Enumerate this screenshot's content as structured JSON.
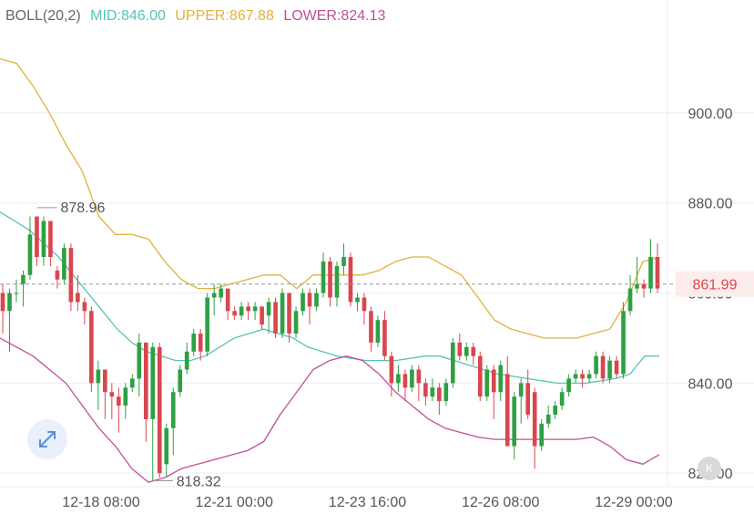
{
  "indicator": {
    "name": "BOLL(20,2)",
    "mid_label": "MID:846.00",
    "upper_label": "UPPER:867.88",
    "lower_label": "LOWER:824.13"
  },
  "colors": {
    "up": "#2ea043",
    "down": "#d9464f",
    "mid": "#56c4b4",
    "upper": "#e0b23c",
    "lower": "#c04f97",
    "name": "#666666",
    "grid": "#eeeeee",
    "current_price": "#d9464f"
  },
  "current_price_label": "861.99",
  "max_label": "878.96",
  "min_label": "818.32",
  "buttons": {
    "expand_icon": "expand-arrows-icon",
    "k_label": "K"
  },
  "chart_data": {
    "type": "candlestick",
    "title": "",
    "x_ticks": [
      "12-18 08:00",
      "12-21 00:00",
      "12-23 16:00",
      "12-26 08:00",
      "12-29 00:00"
    ],
    "y_ticks": [
      820,
      840,
      860,
      880,
      900
    ],
    "y_tick_labels": [
      "820.00",
      "840.00",
      "860.00",
      "880.00",
      "900.00"
    ],
    "ylim": [
      817,
      919
    ],
    "current_price": 861.99,
    "high_annotation": 878.96,
    "low_annotation": 818.32,
    "candles": [
      [
        860.0,
        856.0,
        862.0,
        851.0
      ],
      [
        856.0,
        860.0,
        861.0,
        847.0
      ],
      [
        860.0,
        860.0,
        863.0,
        858.0
      ],
      [
        862.0,
        864.0,
        865.0,
        857.0
      ],
      [
        864.0,
        873.0,
        877.0,
        863.0
      ],
      [
        877.0,
        868.0,
        877.0,
        866.0
      ],
      [
        868.0,
        876.0,
        877.0,
        866.0
      ],
      [
        876.0,
        868.0,
        876.0,
        866.0
      ],
      [
        865.0,
        863.0,
        866.0,
        861.0
      ],
      [
        863.0,
        870.0,
        871.0,
        862.0
      ],
      [
        870.0,
        858.0,
        871.0,
        856.0
      ],
      [
        860.0,
        858.0,
        864.0,
        856.0
      ],
      [
        858.0,
        856.0,
        859.0,
        853.0
      ],
      [
        856.0,
        840.0,
        857.0,
        838.0
      ],
      [
        840.0,
        843.0,
        845.0,
        834.0
      ],
      [
        843.0,
        838.0,
        843.0,
        832.0
      ],
      [
        838.0,
        837.0,
        840.0,
        832.0
      ],
      [
        837.0,
        835.0,
        839.0,
        829.0
      ],
      [
        835.0,
        839.0,
        840.0,
        832.0
      ],
      [
        839.0,
        841.0,
        842.0,
        838.0
      ],
      [
        841.0,
        849.0,
        851.0,
        837.0
      ],
      [
        849.0,
        832.0,
        849.0,
        827.0
      ],
      [
        832.0,
        848.0,
        849.0,
        818.32
      ],
      [
        848.0,
        820.0,
        849.0,
        819.0
      ],
      [
        822.0,
        830.0,
        831.0,
        819.0
      ],
      [
        830.0,
        838.0,
        839.0,
        824.0
      ],
      [
        838.0,
        843.0,
        844.0,
        837.0
      ],
      [
        843.0,
        847.0,
        849.0,
        842.0
      ],
      [
        847.0,
        851.0,
        852.0,
        846.0
      ],
      [
        851.0,
        847.0,
        852.0,
        845.0
      ],
      [
        847.0,
        859.0,
        860.0,
        846.0
      ],
      [
        859.0,
        860.0,
        862.0,
        855.0
      ],
      [
        859.0,
        861.0,
        862.0,
        858.0
      ],
      [
        861.0,
        856.0,
        861.0,
        854.0
      ],
      [
        856.0,
        855.0,
        857.0,
        854.0
      ],
      [
        855.0,
        857.0,
        858.0,
        854.0
      ],
      [
        857.0,
        856.0,
        858.0,
        854.0
      ],
      [
        856.0,
        857.0,
        858.0,
        854.0
      ],
      [
        857.0,
        853.0,
        857.0,
        852.0
      ],
      [
        855.0,
        858.0,
        859.0,
        851.0
      ],
      [
        858.0,
        851.0,
        859.0,
        850.0
      ],
      [
        851.0,
        860.0,
        861.0,
        850.0
      ],
      [
        860.0,
        851.0,
        860.0,
        849.0
      ],
      [
        851.0,
        856.0,
        857.0,
        850.0
      ],
      [
        856.0,
        860.0,
        861.0,
        855.0
      ],
      [
        860.0,
        857.0,
        861.0,
        853.0
      ],
      [
        857.0,
        860.0,
        861.0,
        856.0
      ],
      [
        860.0,
        867.0,
        869.0,
        859.0
      ],
      [
        867.0,
        859.0,
        868.0,
        857.0
      ],
      [
        859.0,
        866.0,
        867.0,
        857.0
      ],
      [
        866.0,
        868.0,
        871.0,
        864.0
      ],
      [
        868.0,
        858.0,
        869.0,
        857.0
      ],
      [
        858.0,
        859.0,
        860.0,
        856.0
      ],
      [
        859.0,
        856.0,
        860.0,
        853.0
      ],
      [
        856.0,
        849.0,
        857.0,
        847.0
      ],
      [
        849.0,
        854.0,
        855.0,
        848.0
      ],
      [
        854.0,
        846.0,
        856.0,
        845.0
      ],
      [
        846.0,
        840.0,
        847.0,
        837.0
      ],
      [
        840.0,
        842.0,
        844.0,
        838.0
      ],
      [
        842.0,
        839.0,
        843.0,
        836.0
      ],
      [
        839.0,
        843.0,
        844.0,
        838.0
      ],
      [
        843.0,
        840.0,
        844.0,
        836.0
      ],
      [
        840.0,
        837.0,
        841.0,
        835.0
      ],
      [
        837.0,
        839.0,
        841.0,
        836.0
      ],
      [
        839.0,
        836.0,
        840.0,
        833.0
      ],
      [
        836.0,
        840.0,
        841.0,
        835.0
      ],
      [
        840.0,
        849.0,
        850.0,
        839.0
      ],
      [
        849.0,
        846.0,
        851.0,
        845.0
      ],
      [
        846.0,
        848.0,
        849.0,
        845.0
      ],
      [
        848.0,
        846.0,
        849.0,
        844.0
      ],
      [
        846.0,
        837.0,
        847.0,
        836.0
      ],
      [
        837.0,
        843.0,
        844.0,
        836.0
      ],
      [
        843.0,
        838.0,
        844.0,
        832.0
      ],
      [
        838.0,
        844.0,
        845.0,
        836.0
      ],
      [
        842.0,
        826.0,
        846.0,
        826.0
      ],
      [
        826.0,
        837.0,
        838.0,
        823.0
      ],
      [
        837.0,
        840.0,
        841.0,
        831.0
      ],
      [
        840.0,
        833.0,
        843.0,
        832.0
      ],
      [
        838.0,
        826.0,
        839.0,
        821.0
      ],
      [
        826.0,
        831.0,
        832.0,
        825.0
      ],
      [
        831.0,
        833.0,
        835.0,
        830.0
      ],
      [
        833.0,
        835.0,
        836.0,
        832.0
      ],
      [
        835.0,
        838.0,
        839.0,
        834.0
      ],
      [
        838.0,
        841.0,
        842.0,
        837.0
      ],
      [
        841.0,
        842.0,
        843.0,
        840.0
      ],
      [
        842.0,
        841.0,
        843.0,
        839.0
      ],
      [
        841.0,
        842.0,
        843.0,
        840.0
      ],
      [
        842.0,
        846.0,
        847.0,
        841.0
      ],
      [
        846.0,
        841.0,
        847.0,
        840.0
      ],
      [
        841.0,
        845.0,
        846.0,
        840.0
      ],
      [
        845.0,
        842.0,
        846.0,
        841.0
      ],
      [
        842.0,
        856.0,
        858.0,
        841.0
      ],
      [
        856.0,
        861.0,
        864.0,
        855.0
      ],
      [
        861.0,
        862.0,
        868.0,
        860.0
      ],
      [
        862.0,
        861.0,
        863.0,
        859.0
      ],
      [
        861.0,
        868.0,
        872.0,
        860.0
      ],
      [
        868.0,
        861.0,
        871.0,
        860.0
      ]
    ],
    "series": [
      {
        "name": "MID",
        "values": [
          878.0,
          876.0,
          874.0,
          871.0,
          868.0,
          864.0,
          860.0,
          856.0,
          852.0,
          849.0,
          847.0,
          846.0,
          845.0,
          845.0,
          846.0,
          848.0,
          850.0,
          851.0,
          852.0,
          851.0,
          850.0,
          848.0,
          847.0,
          846.0,
          845.5,
          845.0,
          845.0,
          845.0,
          845.5,
          846.0,
          846.0,
          845.0,
          844.0,
          843.0,
          842.0,
          841.5,
          841.0,
          840.5,
          840.0,
          840.0,
          840.0,
          840.5,
          841.0,
          842.0,
          846.0,
          846.0
        ]
      },
      {
        "name": "UPPER",
        "values": [
          912.0,
          911.0,
          906.0,
          900.0,
          893.0,
          887.0,
          877.0,
          873.0,
          873.0,
          872.0,
          867.0,
          863.0,
          861.0,
          861.0,
          862.0,
          863.0,
          864.0,
          864.0,
          861.0,
          864.0,
          864.0,
          864.0,
          864.0,
          865.0,
          867.0,
          868.0,
          868.0,
          866.0,
          864.0,
          859.0,
          854.0,
          852.0,
          851.0,
          850.0,
          850.0,
          850.0,
          851.0,
          852.0,
          858.0,
          867.0,
          867.88
        ]
      },
      {
        "name": "LOWER",
        "values": [
          850.0,
          848.0,
          846.0,
          843.0,
          840.0,
          835.0,
          830.0,
          826.0,
          821.0,
          818.0,
          819.0,
          821.0,
          822.0,
          823.0,
          824.0,
          825.0,
          827.0,
          833.0,
          838.0,
          843.0,
          845.0,
          846.0,
          845.0,
          842.0,
          838.0,
          835.0,
          832.0,
          830.0,
          829.0,
          828.0,
          827.5,
          827.5,
          827.5,
          827.5,
          827.5,
          827.5,
          828.0,
          826.0,
          823.0,
          822.0,
          824.13
        ]
      }
    ]
  }
}
